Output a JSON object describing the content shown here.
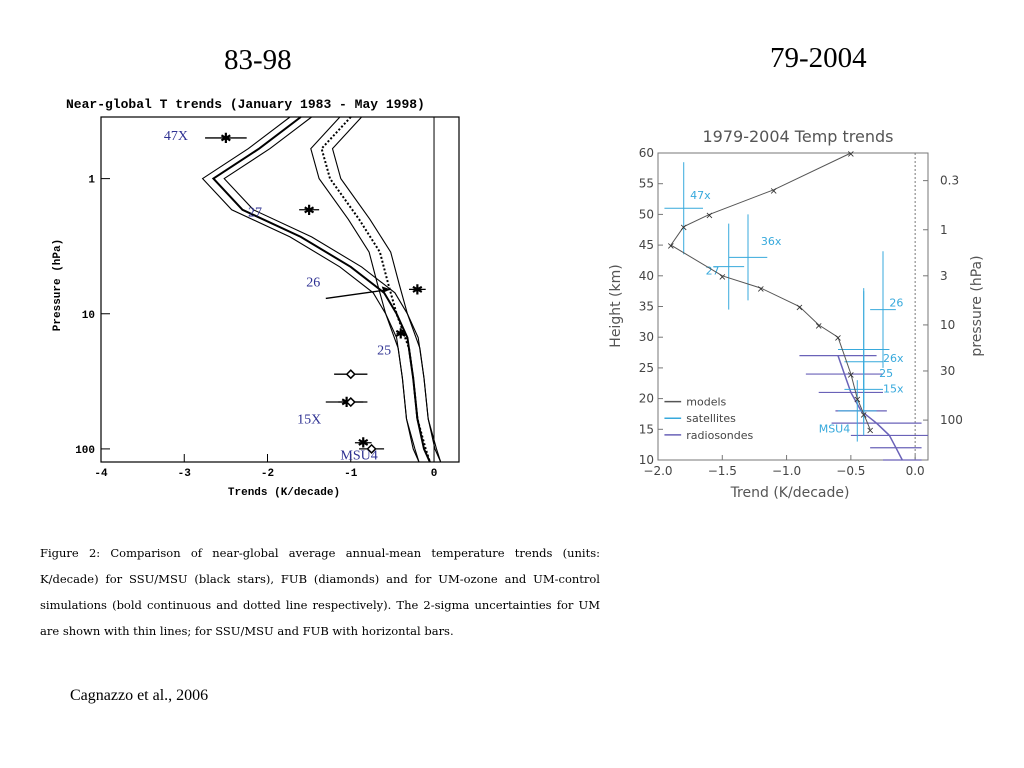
{
  "slide": {
    "left_heading": "83-98",
    "right_heading": "79-2004",
    "caption": "Figure 2:  Comparison of near-global average annual-mean temperature trends (units: K/decade) for SSU/MSU (black stars), FUB (diamonds) and for UM-ozone and UM-control simulations (bold continuous and dotted line respectively).  The 2-sigma uncertainties for UM are shown with thin lines; for SSU/MSU and FUB with horizontal bars.",
    "citation": "Cagnazzo et al., 2006"
  },
  "chart_data": [
    {
      "type": "line",
      "title": "Near-global T trends (January 1983 - May 1998)",
      "xlabel": "Trends (K/decade)",
      "ylabel": "Pressure (hPa)",
      "xlim": [
        -4,
        0.3
      ],
      "ylim": [
        0.35,
        125
      ],
      "yscale": "log",
      "yreversed": true,
      "x_ticks": [
        "-4",
        "-3",
        "-2",
        "-1",
        "0"
      ],
      "y_ticks": [
        "1",
        "10",
        "100"
      ],
      "series": [
        {
          "style": "bold-solid-with-2sigma",
          "points": [
            [
              -1.6,
              0.35
            ],
            [
              -2.1,
              0.6
            ],
            [
              -2.65,
              1.0
            ],
            [
              -2.3,
              1.7
            ],
            [
              -1.6,
              2.7
            ],
            [
              -1.0,
              4.5
            ],
            [
              -0.6,
              7
            ],
            [
              -0.45,
              10
            ],
            [
              -0.32,
              15
            ],
            [
              -0.25,
              30
            ],
            [
              -0.2,
              60
            ],
            [
              -0.12,
              100
            ],
            [
              -0.05,
              125
            ]
          ]
        },
        {
          "style": "dotted-with-2sigma",
          "points": [
            [
              -1.0,
              0.35
            ],
            [
              -1.35,
              0.6
            ],
            [
              -1.25,
              1.0
            ],
            [
              -0.9,
              2.0
            ],
            [
              -0.65,
              3.5
            ],
            [
              -0.55,
              6
            ],
            [
              -0.45,
              10
            ],
            [
              -0.3,
              18
            ],
            [
              -0.25,
              30
            ],
            [
              -0.2,
              60
            ],
            [
              -0.1,
              100
            ],
            [
              -0.05,
              125
            ]
          ]
        }
      ],
      "stars": [
        {
          "label": "47X",
          "x": -2.5,
          "p": 0.5,
          "xerr": 0.25
        },
        {
          "label": "27",
          "x": -1.5,
          "p": 1.7,
          "xerr": 0.12
        },
        {
          "label": "26",
          "x": -0.2,
          "p": 6.6,
          "xerr": 0.1
        },
        {
          "label": "25",
          "x": -0.4,
          "p": 14,
          "xerr": 0.05
        },
        {
          "label": "15X",
          "x": -1.05,
          "p": 45,
          "xerr": 0.25
        },
        {
          "label": "MSU4",
          "x": -0.85,
          "p": 90,
          "xerr": 0.1
        }
      ],
      "diamonds": [
        {
          "x": -1.0,
          "p": 28,
          "xerr": 0.2
        },
        {
          "x": -1.0,
          "p": 45,
          "xerr": 0.15
        },
        {
          "x": -0.75,
          "p": 100,
          "xerr": 0.15
        }
      ]
    },
    {
      "type": "line",
      "title": "1979-2004 Temp trends",
      "xlabel": "Trend (K/decade)",
      "ylabel": "Height (km)",
      "y2label": "pressure (hPa)",
      "xlim": [
        -2.0,
        0.1
      ],
      "ylim": [
        10,
        60
      ],
      "x_ticks": [
        "-2.0",
        "-1.5",
        "-1.0",
        "-0.5",
        "0.0"
      ],
      "y_ticks": [
        "10",
        "15",
        "20",
        "25",
        "30",
        "35",
        "40",
        "45",
        "50",
        "55",
        "60"
      ],
      "y2_ticks": [
        "0.3",
        "1",
        "3",
        "10",
        "30",
        "100"
      ],
      "legend": [
        "models",
        "satellites",
        "radiosondes"
      ],
      "legend_position": "bottom-left",
      "colors": {
        "models": "#555555",
        "satellites": "#37a9dc",
        "radiosondes": "#6a62b8"
      },
      "models": {
        "x": [
          -0.5,
          -1.1,
          -1.6,
          -1.8,
          -1.9,
          -1.5,
          -1.2,
          -0.9,
          -0.75,
          -0.6,
          -0.5,
          -0.45,
          -0.4,
          -0.35
        ],
        "y": [
          60,
          54,
          50,
          48,
          45,
          40,
          38,
          35,
          32,
          30,
          24,
          20,
          17.5,
          15
        ]
      },
      "satellites": [
        {
          "label": "47x",
          "x": -1.8,
          "y": 51,
          "xerr": 0.15,
          "yerr": 7.5
        },
        {
          "label": "36x",
          "x": -1.3,
          "y": 43,
          "xerr": 0.15,
          "yerr": 7
        },
        {
          "label": "27",
          "x": -1.45,
          "y": 41.5,
          "xerr": 0.12,
          "yerr": 7
        },
        {
          "label": "26",
          "x": -0.25,
          "y": 34.5,
          "xerr": 0.1,
          "yerr": 9.5
        },
        {
          "label": "26x",
          "x": -0.4,
          "y": 28,
          "xerr": 0.2,
          "yerr": 9.5
        },
        {
          "label": "25",
          "x": -0.4,
          "y": 26,
          "xerr": 0.15,
          "yerr": 12
        },
        {
          "label": "15x",
          "x": -0.4,
          "y": 21.5,
          "xerr": 0.15,
          "yerr": 5.5
        },
        {
          "label": "MSU4",
          "x": -0.45,
          "y": 18,
          "xerr": 0.15,
          "yerr": 5
        }
      ],
      "radiosondes": {
        "x": [
          -0.6,
          -0.55,
          -0.5,
          -0.42,
          -0.3,
          -0.2,
          -0.15,
          -0.1
        ],
        "y": [
          27,
          24,
          21,
          18,
          16,
          14,
          12,
          10
        ],
        "xerr": [
          0.3,
          0.3,
          0.25,
          0.2,
          0.35,
          0.3,
          0.2,
          0.15
        ]
      }
    }
  ]
}
